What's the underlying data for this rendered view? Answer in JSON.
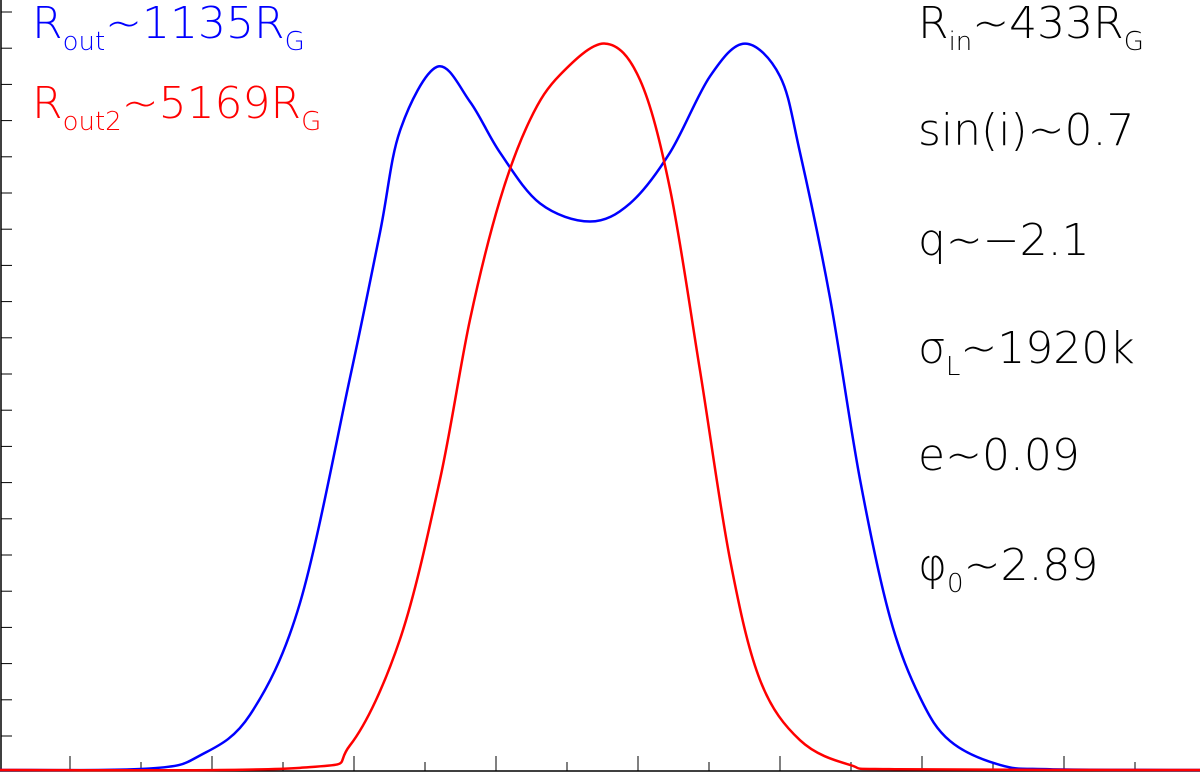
{
  "chart_data": {
    "type": "line",
    "xlim": [
      0,
      1200
    ],
    "ylim": [
      0,
      1.06
    ],
    "series": [
      {
        "name": "Rout",
        "color": "#0000ff",
        "x": [
          0,
          150,
          200,
          250,
          300,
          350,
          380,
          400,
          437,
          470,
          500,
          540,
          590,
          630,
          670,
          710,
          745,
          780,
          800,
          830,
          860,
          890,
          920,
          950,
          1000,
          1050,
          1200
        ],
        "values": [
          0,
          0.002,
          0.02,
          0.076,
          0.23,
          0.54,
          0.74,
          0.88,
          0.968,
          0.92,
          0.85,
          0.78,
          0.755,
          0.78,
          0.85,
          0.955,
          1.0,
          0.955,
          0.85,
          0.65,
          0.4,
          0.21,
          0.1,
          0.04,
          0.007,
          0.001,
          0
        ]
      },
      {
        "name": "Rout2",
        "color": "#ff0000",
        "x": [
          0,
          300,
          350,
          400,
          440,
          470,
          500,
          530,
          560,
          605,
          640,
          670,
          700,
          730,
          760,
          800,
          850,
          900,
          1200
        ],
        "values": [
          0,
          0.003,
          0.034,
          0.18,
          0.4,
          0.62,
          0.785,
          0.895,
          0.957,
          1.0,
          0.95,
          0.8,
          0.55,
          0.29,
          0.124,
          0.041,
          0.007,
          0.001,
          0
        ]
      }
    ],
    "annotations": [
      {
        "color": "#0000ff",
        "parts": [
          {
            "t": "R"
          },
          {
            "sub": "out"
          },
          {
            "t": "~1135R"
          },
          {
            "sub": "G"
          }
        ]
      },
      {
        "color": "#ff0000",
        "parts": [
          {
            "t": "R"
          },
          {
            "sub": "out2"
          },
          {
            "t": "~5169R"
          },
          {
            "sub": "G"
          }
        ]
      },
      {
        "color": "#000000",
        "parts": [
          {
            "t": "R"
          },
          {
            "sub": "in"
          },
          {
            "t": "~433R"
          },
          {
            "sub": "G"
          }
        ]
      },
      {
        "color": "#000000",
        "parts": [
          {
            "t": "sin(i)~0.7"
          }
        ]
      },
      {
        "color": "#000000",
        "parts": [
          {
            "t": "q~−2.1"
          }
        ]
      },
      {
        "color": "#000000",
        "parts": [
          {
            "t": "σ"
          },
          {
            "sub": "L"
          },
          {
            "t": "~1920k"
          }
        ]
      },
      {
        "color": "#000000",
        "parts": [
          {
            "t": "e~0.09"
          }
        ]
      },
      {
        "color": "#000000",
        "parts": [
          {
            "t": "φ"
          },
          {
            "sub": "0"
          },
          {
            "t": "~2.89"
          }
        ]
      }
    ]
  }
}
